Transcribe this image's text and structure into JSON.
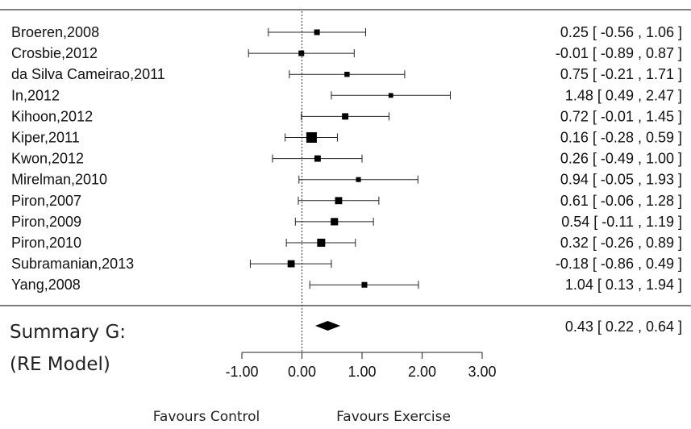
{
  "chart_data": {
    "type": "forest",
    "studies": [
      {
        "label": "Broeren,2008",
        "est": 0.25,
        "lo": -0.56,
        "hi": 1.06,
        "text": "0.25 [ -0.56 , 1.06 ]",
        "weight": 1
      },
      {
        "label": "Crosbie,2012",
        "est": -0.01,
        "lo": -0.89,
        "hi": 0.87,
        "text": "-0.01 [ -0.89 , 0.87 ]",
        "weight": 1
      },
      {
        "label": "da Silva Cameirao,2011",
        "est": 0.75,
        "lo": -0.21,
        "hi": 1.71,
        "text": "0.75 [ -0.21 , 1.71 ]",
        "weight": 0.8
      },
      {
        "label": "In,2012",
        "est": 1.48,
        "lo": 0.49,
        "hi": 2.47,
        "text": "1.48 [  0.49 , 2.47 ]",
        "weight": 0.6
      },
      {
        "label": "Kihoon,2012",
        "est": 0.72,
        "lo": -0.01,
        "hi": 1.45,
        "text": "0.72 [ -0.01 , 1.45 ]",
        "weight": 1.3
      },
      {
        "label": "Kiper,2011",
        "est": 0.16,
        "lo": -0.28,
        "hi": 0.59,
        "text": "0.16 [ -0.28 , 0.59 ]",
        "weight": 3
      },
      {
        "label": "Kwon,2012",
        "est": 0.26,
        "lo": -0.49,
        "hi": 1.0,
        "text": "0.26 [ -0.49 , 1.00 ]",
        "weight": 1.3
      },
      {
        "label": "Mirelman,2010",
        "est": 0.94,
        "lo": -0.05,
        "hi": 1.93,
        "text": "0.94 [ -0.05 , 1.93 ]",
        "weight": 0.7
      },
      {
        "label": "Piron,2007",
        "est": 0.61,
        "lo": -0.06,
        "hi": 1.28,
        "text": "0.61 [ -0.06 , 1.28 ]",
        "weight": 1.6
      },
      {
        "label": "Piron,2009",
        "est": 0.54,
        "lo": -0.11,
        "hi": 1.19,
        "text": "0.54 [ -0.11 , 1.19 ]",
        "weight": 1.7
      },
      {
        "label": "Piron,2010",
        "est": 0.32,
        "lo": -0.26,
        "hi": 0.89,
        "text": "0.32 [ -0.26 , 0.89 ]",
        "weight": 2
      },
      {
        "label": "Subramanian,2013",
        "est": -0.18,
        "lo": -0.86,
        "hi": 0.49,
        "text": "-0.18 [ -0.86 , 0.49 ]",
        "weight": 1.6
      },
      {
        "label": "Yang,2008",
        "est": 1.04,
        "lo": 0.13,
        "hi": 1.94,
        "text": "1.04 [  0.13 , 1.94 ]",
        "weight": 1
      }
    ],
    "summary": {
      "label_line1": "Summary G:",
      "label_line2": "(RE Model)",
      "est": 0.43,
      "lo": 0.22,
      "hi": 0.64,
      "text": "0.43 [  0.22 , 0.64 ]"
    },
    "x_ticks": [
      -1.0,
      0.0,
      1.0,
      2.0,
      3.0
    ],
    "x_tick_labels": [
      "-1.00",
      "0.00",
      "1.00",
      "2.00",
      "3.00"
    ],
    "xlim": [
      -1,
      3
    ],
    "reference_line": 0,
    "favours_left": "Favours Control",
    "favours_right": "Favours Exercise"
  }
}
